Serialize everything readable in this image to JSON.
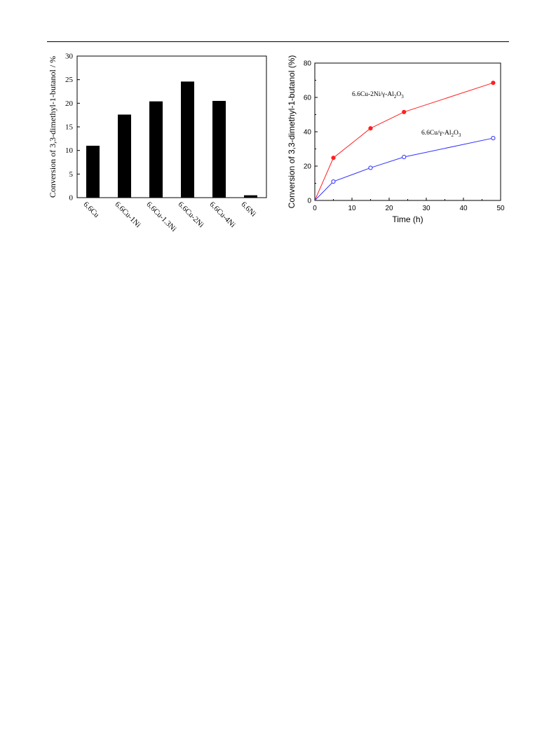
{
  "chart_data": [
    {
      "type": "bar",
      "ylabel": "Conversion of 3,3-dimethyl-1-butanol / %",
      "categories": [
        "6.6Cu",
        "6.6Cu-1Ni",
        "6.6Cu-1.3Ni",
        "6.6Cu-2Ni",
        "6.6Cu-4Ni",
        "6.6Ni"
      ],
      "values": [
        11.0,
        17.6,
        20.4,
        24.6,
        20.5,
        0.5
      ],
      "ylim": [
        0,
        30
      ],
      "yticks": [
        0,
        5,
        10,
        15,
        20,
        25,
        30
      ],
      "colors": {
        "bar": "#000000"
      }
    },
    {
      "type": "line",
      "xlabel": "Time (h)",
      "ylabel": "Conversion of 3,3-dimethyl-1-butanol (%)",
      "xlim": [
        0,
        50
      ],
      "ylim": [
        0,
        80
      ],
      "xticks": [
        0,
        10,
        20,
        30,
        40,
        50
      ],
      "yticks": [
        0,
        20,
        40,
        60,
        80
      ],
      "series": [
        {
          "name": "6.6Cu-2Ni/γ-Al2O3",
          "label_main": "6.6Cu-2Ni/γ-Al",
          "label_sub1": "2",
          "label_mid": "O",
          "label_sub2": "3",
          "color": "#ff2020",
          "marker": "filled-circle",
          "x": [
            0,
            5,
            15,
            24,
            48
          ],
          "y": [
            0,
            24.8,
            42.0,
            51.5,
            68.5
          ]
        },
        {
          "name": "6.6Cu/γ-Al2O3",
          "label_main": "6.6Cu/γ-Al",
          "label_sub1": "2",
          "label_mid": "O",
          "label_sub2": "3",
          "color": "#3030ff",
          "marker": "open-circle",
          "x": [
            0,
            5,
            15,
            24,
            48
          ],
          "y": [
            0,
            11.0,
            19.0,
            25.3,
            36.3
          ]
        }
      ]
    }
  ]
}
